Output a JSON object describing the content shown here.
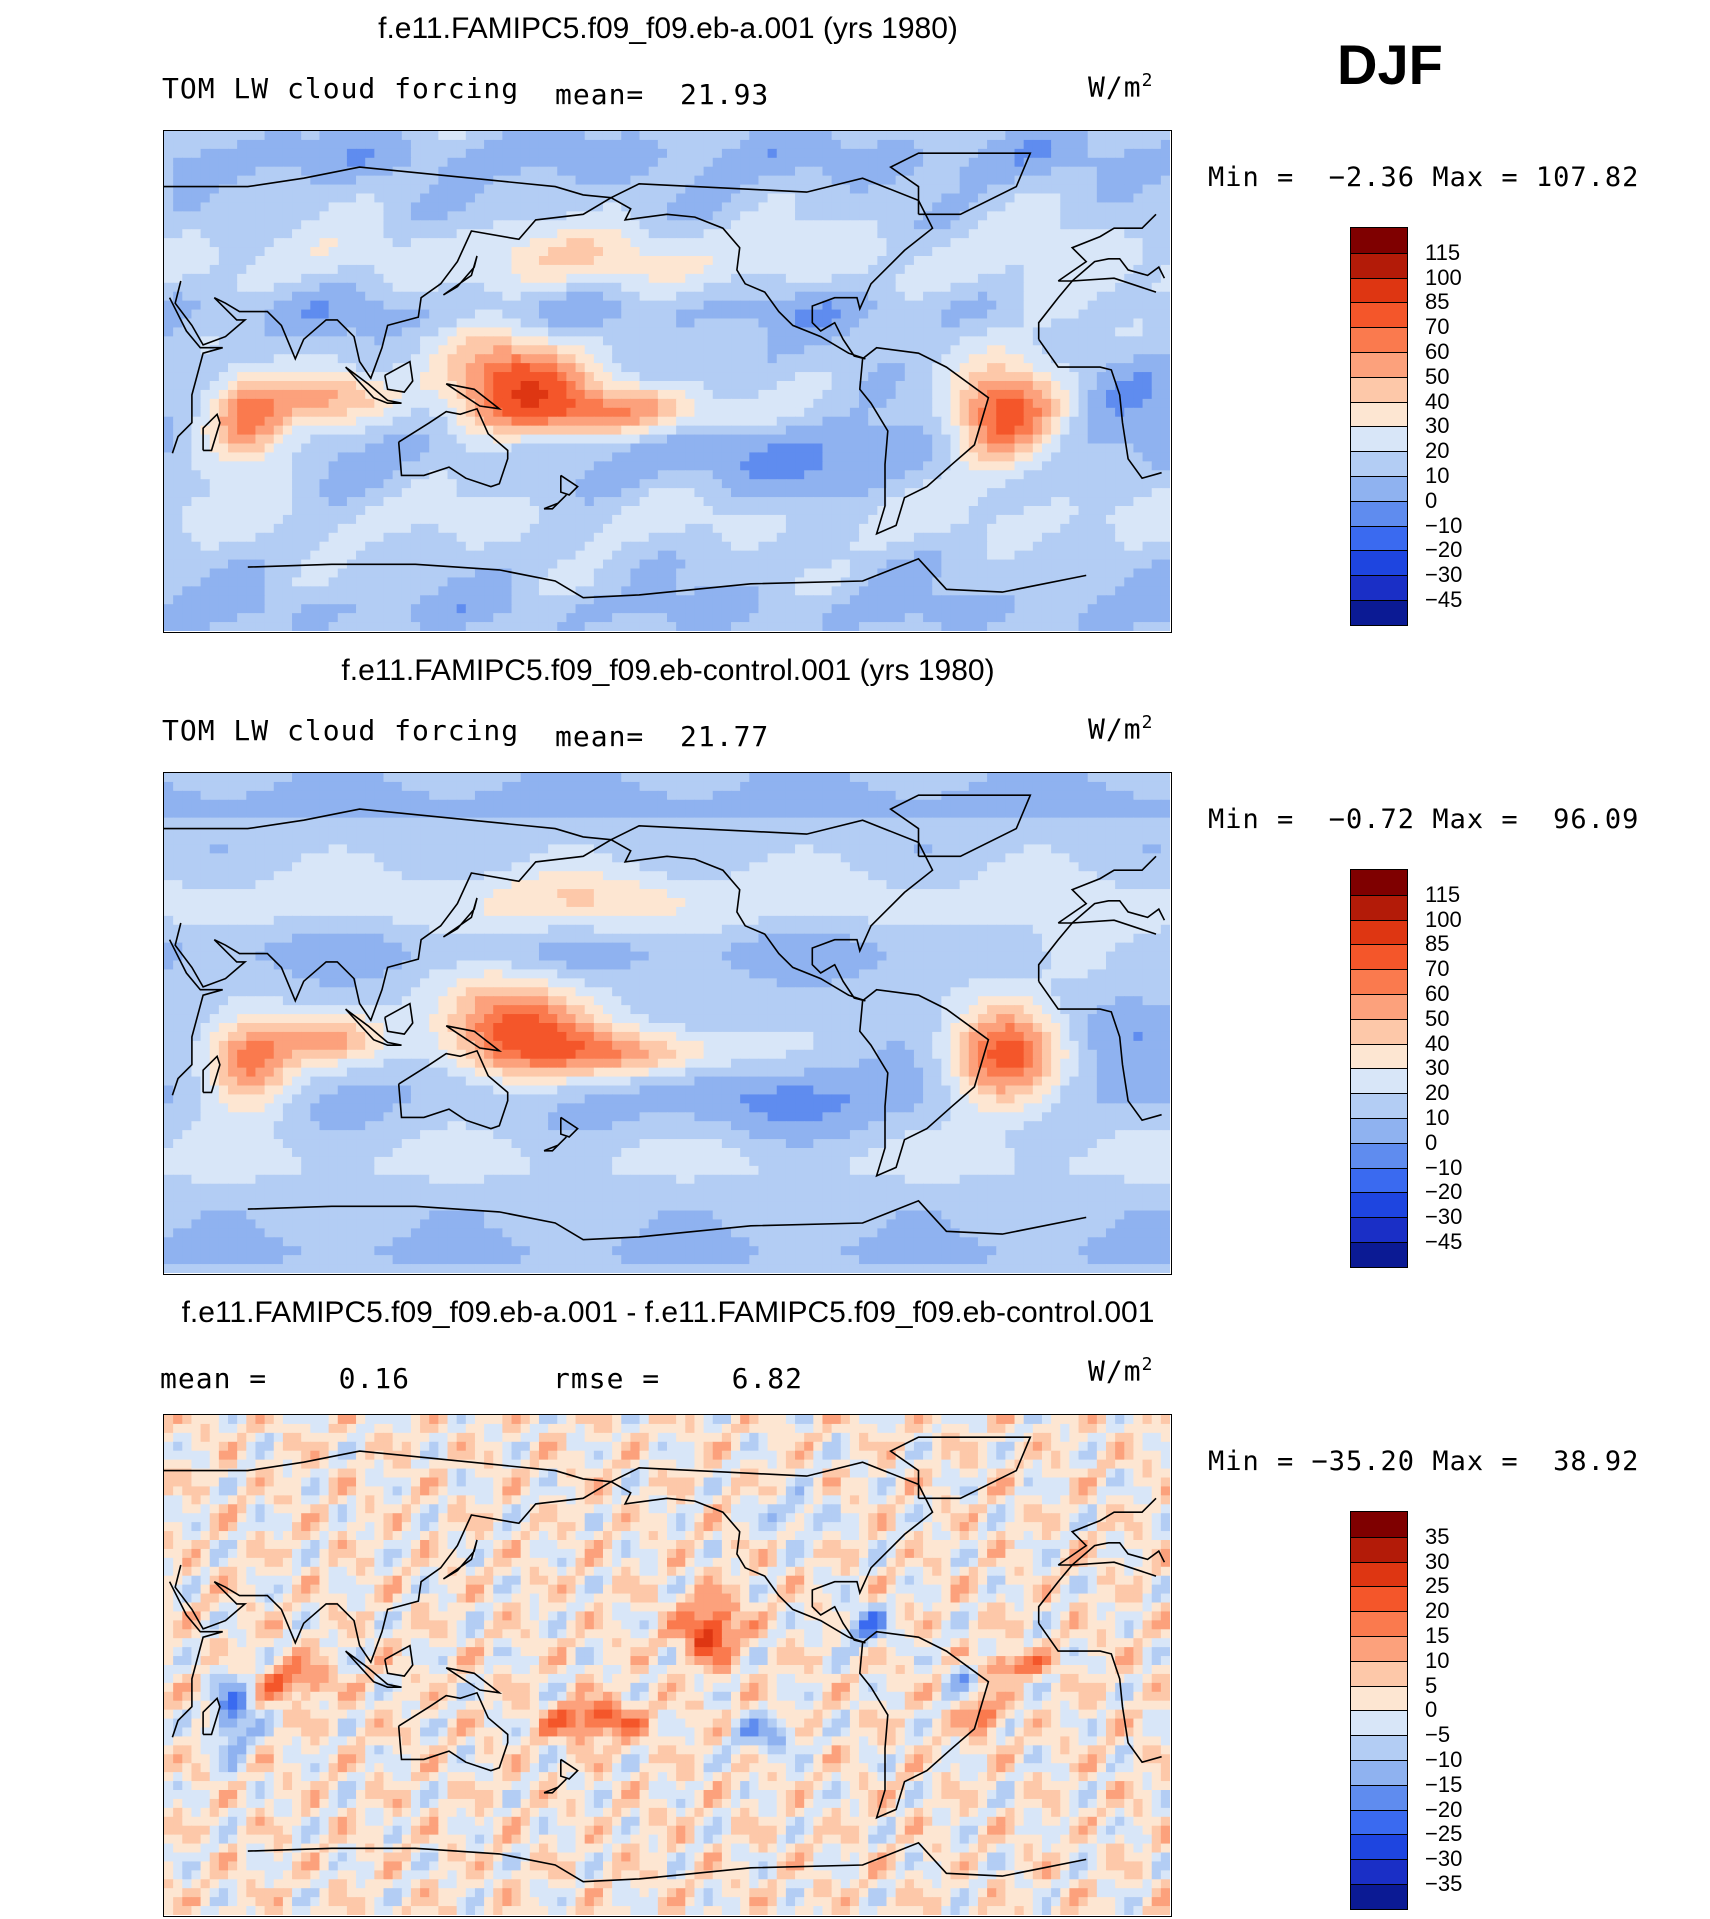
{
  "season": "DJF",
  "panels": [
    {
      "title": "f.e11.FAMIPC5.f09_f09.eb-a.001 (yrs 1980)",
      "variable": "TOM LW cloud forcing",
      "mean_text": "mean=  21.93",
      "units": "W/m",
      "units_exp": "2",
      "minmax": "Min =  −2.36 Max = 107.82",
      "colorbar_labels": [
        "115",
        "100",
        "85",
        "70",
        "60",
        "50",
        "40",
        "30",
        "20",
        "10",
        "0",
        "−10",
        "−20",
        "−30",
        "−45"
      ],
      "colorbar_colors": [
        "#7f0000",
        "#b31b08",
        "#de3612",
        "#f4562a",
        "#fa7a4e",
        "#fca17c",
        "#fdc8a9",
        "#fde6d2",
        "#d8e6f8",
        "#b3cdf4",
        "#8fb2f0",
        "#5f8cef",
        "#3a6af0",
        "#1e45e0",
        "#1a2fc6",
        "#0b1a94"
      ],
      "field": "control_plus"
    },
    {
      "title": "f.e11.FAMIPC5.f09_f09.eb-control.001 (yrs 1980)",
      "variable": "TOM LW cloud forcing",
      "mean_text": "mean=  21.77",
      "units": "W/m",
      "units_exp": "2",
      "minmax": "Min =  −0.72 Max =  96.09",
      "colorbar_labels": [
        "115",
        "100",
        "85",
        "70",
        "60",
        "50",
        "40",
        "30",
        "20",
        "10",
        "0",
        "−10",
        "−20",
        "−30",
        "−45"
      ],
      "colorbar_colors": [
        "#7f0000",
        "#b31b08",
        "#de3612",
        "#f4562a",
        "#fa7a4e",
        "#fca17c",
        "#fdc8a9",
        "#fde6d2",
        "#d8e6f8",
        "#b3cdf4",
        "#8fb2f0",
        "#5f8cef",
        "#3a6af0",
        "#1e45e0",
        "#1a2fc6",
        "#0b1a94"
      ],
      "field": "control"
    },
    {
      "title": "f.e11.FAMIPC5.f09_f09.eb-a.001 - f.e11.FAMIPC5.f09_f09.eb-control.001",
      "variable": "mean =    0.16",
      "mean_text": "rmse =    6.82",
      "units": "W/m",
      "units_exp": "2",
      "minmax": "Min = −35.20 Max =  38.92",
      "colorbar_labels": [
        "35",
        "30",
        "25",
        "20",
        "15",
        "10",
        "5",
        "0",
        "−5",
        "−10",
        "−15",
        "−20",
        "−25",
        "−30",
        "−35"
      ],
      "colorbar_colors": [
        "#7f0000",
        "#b31b08",
        "#de3612",
        "#f4562a",
        "#fa7a4e",
        "#fca17c",
        "#fdc8a9",
        "#fde6d2",
        "#d8e6f8",
        "#b3cdf4",
        "#8fb2f0",
        "#5f8cef",
        "#3a6af0",
        "#1e45e0",
        "#1a2fc6",
        "#0b1a94"
      ],
      "field": "diff"
    }
  ]
}
